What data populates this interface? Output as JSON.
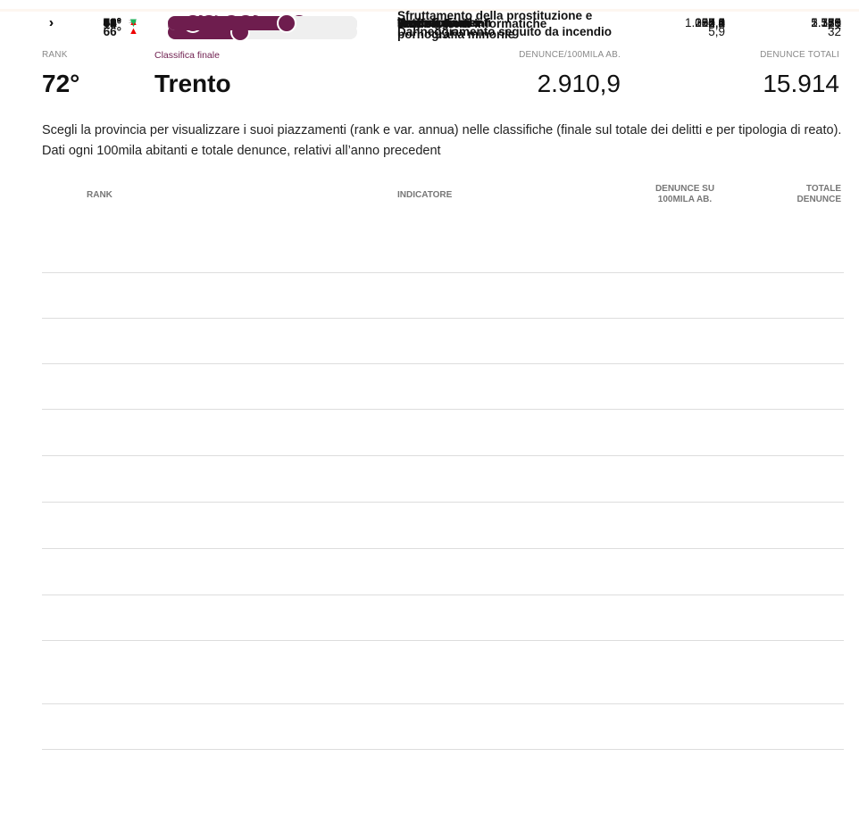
{
  "header": {
    "rank_label": "RANK",
    "rank": "72°",
    "classifica_label": "Classifica finale",
    "province": "Trento",
    "per100k_label": "DENUNCE/100MILA AB.",
    "per100k": "2.910,9",
    "total_label": "DENUNCE TOTALI",
    "total": "15.914"
  },
  "description": "Scegli la provincia per visualizzare i suoi piazzamenti (rank e var. annua) nelle classifiche (finale sul totale dei delitti e per tipologia di reato). Dati ogni 100mila abitanti e totale denunce, relativi all’anno precedent",
  "table": {
    "columns": [
      "RANK",
      "INDICATORE",
      "DENUNCE SU 100MILA AB.",
      "TOTALE DENUNCE"
    ],
    "rows": [
      {
        "rank": 10,
        "rank_label": "10°",
        "trend": "down",
        "expandable": false,
        "indicator": "Sfruttamento della prostituzione e pornografia minorile",
        "per100k": "3,8",
        "total": "21"
      },
      {
        "rank": 58,
        "rank_label": "58°",
        "trend": "down",
        "expandable": false,
        "indicator": "Lesioni dolose",
        "per100k": "107,0",
        "total": "585"
      },
      {
        "rank": 89,
        "rank_label": "89°",
        "trend": "down",
        "expandable": false,
        "indicator": "Danneggiamenti",
        "per100k": "280,4",
        "total": "1.533"
      },
      {
        "rank": 71,
        "rank_label": "71°",
        "trend": "down",
        "expandable": false,
        "indicator": "Incendi",
        "per100k": "4,6",
        "total": "25"
      },
      {
        "rank": 62,
        "rank_label": "62°",
        "trend": "down",
        "expandable": true,
        "indicator": "Furti",
        "per100k": "1.057,1",
        "total": "5.779"
      },
      {
        "rank": 63,
        "rank_label": "63°",
        "trend": "down",
        "expandable": true,
        "indicator": "Rapine",
        "per100k": "22,5",
        "total": "123"
      },
      {
        "rank": 33,
        "rank_label": "33°",
        "trend": "same",
        "expandable": true,
        "indicator": "Stupefacenti",
        "per100k": "58,3",
        "total": "319"
      },
      {
        "rank": 81,
        "rank_label": "81°",
        "trend": "down",
        "expandable": false,
        "indicator": "Truffe e frodi informatiche",
        "per100k": "395,3",
        "total": "2.161"
      },
      {
        "rank": 84,
        "rank_label": "84°",
        "trend": "up",
        "expandable": false,
        "indicator": "Estorsioni",
        "per100k": "14,6",
        "total": "80"
      },
      {
        "rank": 66,
        "rank_label": "66°",
        "trend": "up",
        "expandable": false,
        "indicator": "Danneggiamento seguito da incendio",
        "per100k": "5,9",
        "total": "32"
      },
      {
        "rank": 93,
        "rank_label": "93°",
        "trend": "down",
        "expandable": false,
        "indicator": "Contrabbando",
        "per100k": "0,0",
        "total": "0"
      },
      {
        "rank": 40,
        "rank_label": "40°",
        "trend": "down",
        "expandable": false,
        "indicator": "Usura",
        "per100k": "0,2",
        "total": "1"
      }
    ]
  }
}
